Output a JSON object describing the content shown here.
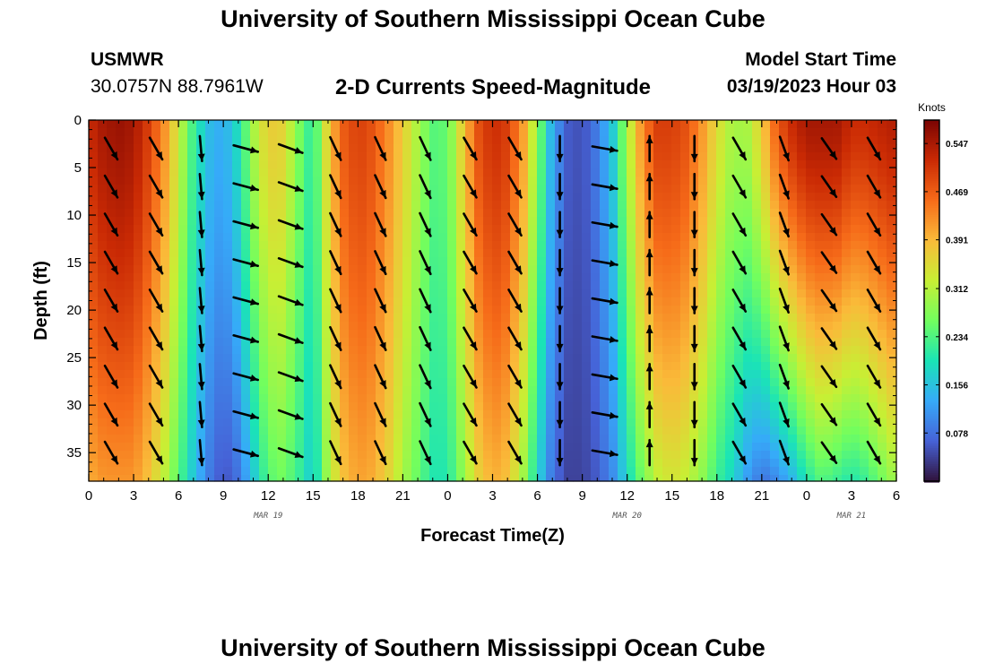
{
  "header": {
    "title": "University of Southern Mississippi Ocean Cube",
    "station_id": "USMWR",
    "station_coords": "30.0757N  88.7961W",
    "subtitle": "2-D Currents Speed-Magnitude",
    "model_start_label": "Model Start Time",
    "model_start_value": "03/19/2023 Hour 03"
  },
  "footer": {
    "title": "University of Southern Mississippi Ocean Cube"
  },
  "chart_data": {
    "type": "heatmap",
    "title": "2-D Currents Speed-Magnitude",
    "xlabel": "Forecast Time(Z)",
    "ylabel": "Depth (ft)",
    "x_tick_labels": [
      "0",
      "3",
      "6",
      "9",
      "12",
      "15",
      "18",
      "21",
      "0",
      "3",
      "6",
      "9",
      "12",
      "15",
      "18",
      "21",
      "0",
      "3",
      "6"
    ],
    "x_range_hours": [
      0,
      54
    ],
    "date_labels": [
      {
        "text": "MAR 19",
        "hour": 12
      },
      {
        "text": "MAR 20",
        "hour": 36
      },
      {
        "text": "MAR 21",
        "hour": 51
      }
    ],
    "y_ticks": [
      0,
      5,
      10,
      15,
      20,
      25,
      30,
      35
    ],
    "ylim": [
      0,
      38
    ],
    "y_inverted": true,
    "colorbar": {
      "unit": "Knots",
      "range": [
        0.0,
        0.585
      ],
      "tick_values": [
        0.078,
        0.156,
        0.234,
        0.312,
        0.391,
        0.469,
        0.547
      ],
      "tick_labels": [
        "0.078",
        "0.156",
        "0.234",
        "0.312",
        "0.391",
        "0.469",
        "0.547"
      ],
      "colors": [
        "#30123b",
        "#4662d7",
        "#36aaf9",
        "#1ae4b6",
        "#72fe5e",
        "#c8ef34",
        "#faba39",
        "#f66b19",
        "#ca2a04",
        "#7a0403"
      ]
    },
    "speed_profiles": {
      "hours": [
        0,
        1,
        2,
        3,
        4,
        5,
        6,
        7,
        8,
        9,
        10,
        11,
        12,
        13,
        14,
        15,
        16,
        17,
        18,
        19,
        20,
        21,
        22,
        23,
        24,
        25,
        26,
        27,
        28,
        29,
        30,
        31,
        32,
        33,
        34,
        35,
        36,
        37,
        38,
        39,
        40,
        41,
        42,
        43,
        44,
        45,
        46,
        47,
        48,
        49,
        50,
        51,
        52,
        53,
        54
      ],
      "surface_knots": [
        0.52,
        0.55,
        0.56,
        0.55,
        0.5,
        0.43,
        0.33,
        0.22,
        0.15,
        0.13,
        0.19,
        0.3,
        0.37,
        0.36,
        0.27,
        0.2,
        0.37,
        0.47,
        0.5,
        0.48,
        0.43,
        0.37,
        0.3,
        0.24,
        0.25,
        0.37,
        0.48,
        0.52,
        0.5,
        0.42,
        0.28,
        0.13,
        0.06,
        0.05,
        0.09,
        0.16,
        0.3,
        0.43,
        0.5,
        0.5,
        0.48,
        0.42,
        0.35,
        0.3,
        0.3,
        0.37,
        0.47,
        0.52,
        0.55,
        0.55,
        0.55,
        0.52,
        0.52,
        0.53,
        0.54
      ],
      "bottom_knots": [
        0.4,
        0.42,
        0.42,
        0.42,
        0.38,
        0.32,
        0.24,
        0.16,
        0.09,
        0.05,
        0.08,
        0.16,
        0.24,
        0.26,
        0.22,
        0.16,
        0.3,
        0.38,
        0.41,
        0.4,
        0.36,
        0.3,
        0.25,
        0.2,
        0.2,
        0.28,
        0.36,
        0.4,
        0.38,
        0.3,
        0.18,
        0.08,
        0.04,
        0.04,
        0.06,
        0.1,
        0.18,
        0.26,
        0.32,
        0.34,
        0.32,
        0.28,
        0.22,
        0.18,
        0.12,
        0.08,
        0.1,
        0.14,
        0.2,
        0.24,
        0.22,
        0.2,
        0.22,
        0.26,
        0.3
      ]
    },
    "vector_columns_hours": [
      1.5,
      4.5,
      7.5,
      10.5,
      13.5,
      16.5,
      19.5,
      22.5,
      25.5,
      28.5,
      31.5,
      34.5,
      37.5,
      40.5,
      43.5,
      46.5,
      49.5,
      52.5
    ],
    "vector_rows_ft": [
      3,
      7,
      11,
      15,
      19,
      23,
      27,
      31,
      35
    ],
    "vector_directions_deg": [
      150,
      150,
      175,
      105,
      110,
      155,
      155,
      155,
      150,
      150,
      180,
      100,
      0,
      180,
      150,
      160,
      145,
      150
    ]
  }
}
